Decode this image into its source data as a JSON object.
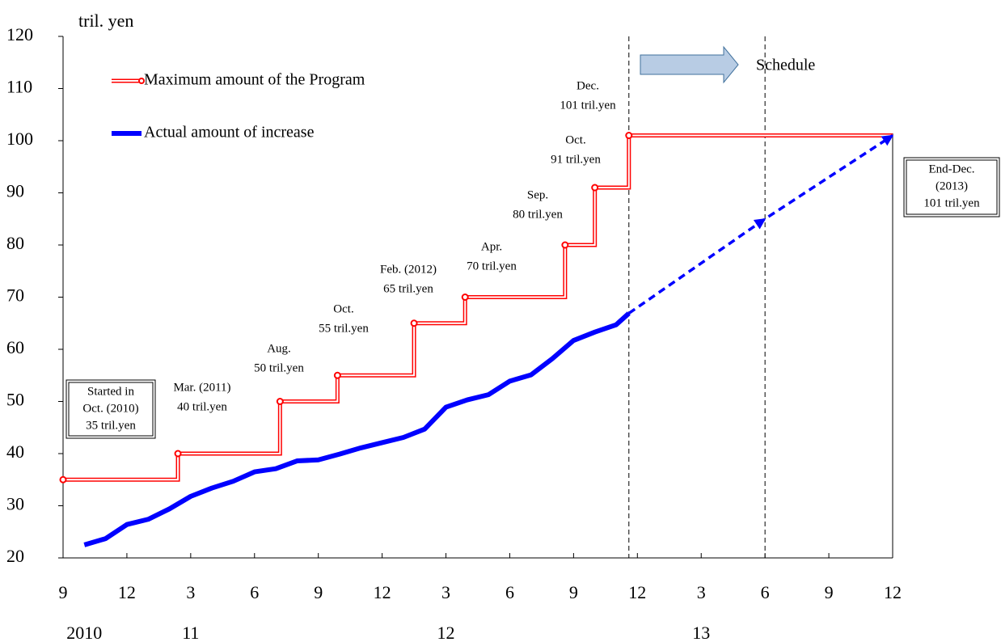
{
  "chart_data": {
    "type": "line",
    "y_unit": "tril. yen",
    "xlim": [
      0,
      39
    ],
    "xticks": [
      {
        "value": 0,
        "label": "9"
      },
      {
        "value": 3,
        "label": "12"
      },
      {
        "value": 6,
        "label": "3"
      },
      {
        "value": 9,
        "label": "6"
      },
      {
        "value": 12,
        "label": "9"
      },
      {
        "value": 15,
        "label": "12"
      },
      {
        "value": 18,
        "label": "3"
      },
      {
        "value": 21,
        "label": "6"
      },
      {
        "value": 24,
        "label": "9"
      },
      {
        "value": 27,
        "label": "12"
      },
      {
        "value": 30,
        "label": "3"
      },
      {
        "value": 33,
        "label": "6"
      },
      {
        "value": 36,
        "label": "9"
      },
      {
        "value": 39,
        "label": "12"
      }
    ],
    "year_labels": [
      {
        "value": 1,
        "label": "2010"
      },
      {
        "value": 6,
        "label": "11"
      },
      {
        "value": 18,
        "label": "12"
      },
      {
        "value": 30,
        "label": "13"
      }
    ],
    "ylim": [
      20,
      120
    ],
    "yticks": [
      20,
      30,
      40,
      50,
      60,
      70,
      80,
      90,
      100,
      110,
      120
    ],
    "reference_lines": [
      26.6,
      33
    ],
    "series": [
      {
        "name": "Maximum amount of the Program",
        "color": "#ff0000",
        "step": "post",
        "x": [
          0,
          5.4,
          10.2,
          12.9,
          16.5,
          18.9,
          23.6,
          25,
          26.6,
          39
        ],
        "values": [
          35,
          40,
          50,
          55,
          65,
          70,
          80,
          91,
          101,
          101
        ]
      },
      {
        "name": "Actual amount of increase",
        "color": "#0000ff",
        "x": [
          1,
          2,
          3,
          4,
          5,
          6,
          7,
          8,
          9,
          10,
          11,
          12,
          13,
          14,
          15,
          16,
          17,
          18,
          19,
          20,
          21,
          22,
          23,
          24,
          25,
          26,
          26.6
        ],
        "values": [
          22.5,
          23.7,
          26.4,
          27.4,
          29.4,
          31.8,
          33.4,
          34.7,
          36.5,
          37.1,
          38.6,
          38.8,
          39.9,
          41.1,
          42.1,
          43.1,
          44.7,
          48.9,
          50.3,
          51.3,
          53.9,
          55.1,
          58.2,
          61.7,
          63.3,
          64.7,
          66.9
        ]
      },
      {
        "color": "#0000ff",
        "dashed": true,
        "x": [
          26.6,
          33,
          39
        ],
        "values": [
          66.9,
          85,
          101
        ]
      }
    ],
    "annotations": [
      {
        "lines": [
          "Mar. (2011)",
          "40 tril.yen"
        ]
      },
      {
        "lines": [
          "Aug.",
          "50 tril.yen"
        ]
      },
      {
        "lines": [
          "Oct.",
          "55 tril.yen"
        ]
      },
      {
        "lines": [
          "Feb. (2012)",
          "65 tril.yen"
        ]
      },
      {
        "lines": [
          "Apr.",
          "70 tril.yen"
        ]
      },
      {
        "lines": [
          "Sep.",
          "80 tril.yen"
        ]
      },
      {
        "lines": [
          "Oct.",
          "91 tril.yen"
        ]
      },
      {
        "lines": [
          "Dec.",
          "101 tril.yen"
        ]
      }
    ],
    "boxed_annotations": [
      {
        "lines": [
          "Started in",
          "Oct. (2010)",
          "35 tril.yen"
        ]
      },
      {
        "lines": [
          "End-Dec.",
          "(2013)",
          "101 tril.yen"
        ]
      }
    ],
    "schedule_label": "Schedule"
  }
}
